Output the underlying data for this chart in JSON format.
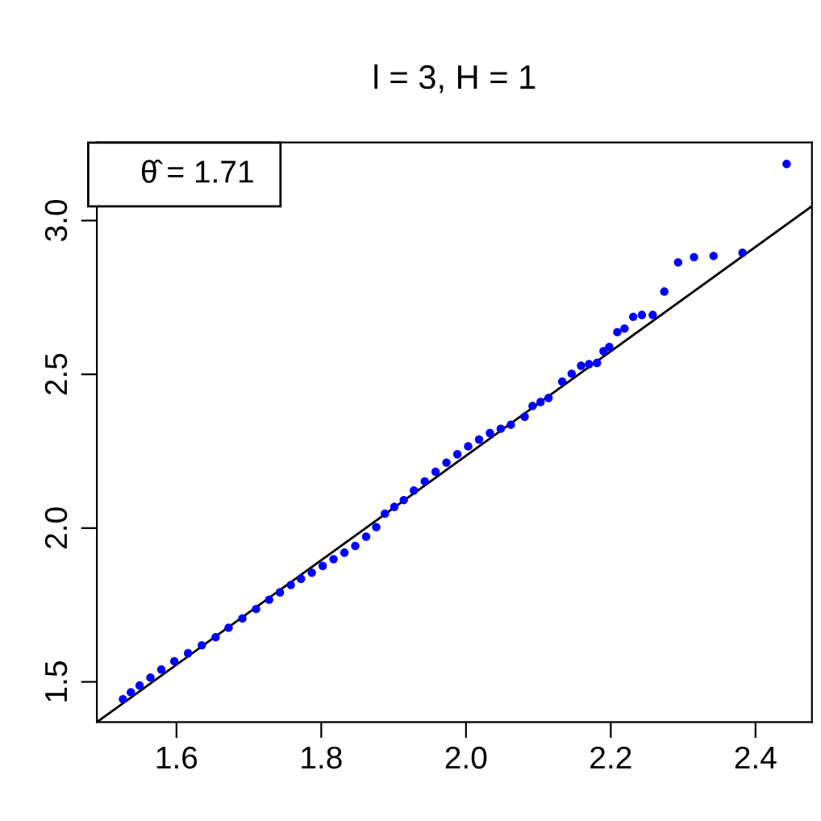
{
  "chart_data": {
    "type": "scatter",
    "title": "l = 3, H = 1",
    "annotations": [
      "θ̂ = 1.71"
    ],
    "xlim": [
      1.49,
      2.478
    ],
    "ylim": [
      1.369,
      3.254
    ],
    "xticks": [
      1.6,
      1.8,
      {
        "value": 2,
        "label": "2.0"
      },
      2.2,
      2.4
    ],
    "yticks": [
      1.5,
      {
        "value": 2,
        "label": "2.0"
      },
      2.5,
      {
        "value": 3,
        "label": "3.0"
      }
    ],
    "grid": false,
    "series": [
      {
        "marker": "circle",
        "color": "#0000ff",
        "x": [
          1.526,
          1.537,
          1.549,
          1.564,
          1.579,
          1.597,
          1.616,
          1.635,
          1.654,
          1.672,
          1.691,
          1.71,
          1.728,
          1.743,
          1.758,
          1.772,
          1.787,
          1.802,
          1.817,
          1.832,
          1.847,
          1.862,
          1.876,
          1.888,
          1.901,
          1.914,
          1.928,
          1.943,
          1.958,
          1.973,
          1.988,
          2.003,
          2.018,
          2.033,
          2.048,
          2.062,
          2.081,
          2.092,
          2.103,
          2.114,
          2.133,
          2.146,
          2.159,
          2.17,
          2.181,
          2.19,
          2.198,
          2.209,
          2.219,
          2.231,
          2.243,
          2.258,
          2.274,
          2.293,
          2.315,
          2.342,
          2.382,
          2.443
        ],
        "values": [
          1.444,
          1.466,
          1.488,
          1.514,
          1.54,
          1.567,
          1.593,
          1.619,
          1.645,
          1.676,
          1.706,
          1.737,
          1.767,
          1.791,
          1.815,
          1.835,
          1.855,
          1.877,
          1.899,
          1.92,
          1.942,
          1.972,
          2.003,
          2.047,
          2.069,
          2.091,
          2.122,
          2.152,
          2.183,
          2.213,
          2.24,
          2.266,
          2.288,
          2.309,
          2.323,
          2.336,
          2.362,
          2.397,
          2.41,
          2.423,
          2.476,
          2.502,
          2.528,
          2.533,
          2.537,
          2.575,
          2.589,
          2.637,
          2.649,
          2.687,
          2.693,
          2.693,
          2.769,
          2.864,
          2.881,
          2.885,
          2.895,
          3.184
        ]
      },
      {
        "type": "line",
        "color": "#000000",
        "x": [
          1.49,
          2.478
        ],
        "values": [
          1.369,
          3.047
        ]
      }
    ]
  }
}
